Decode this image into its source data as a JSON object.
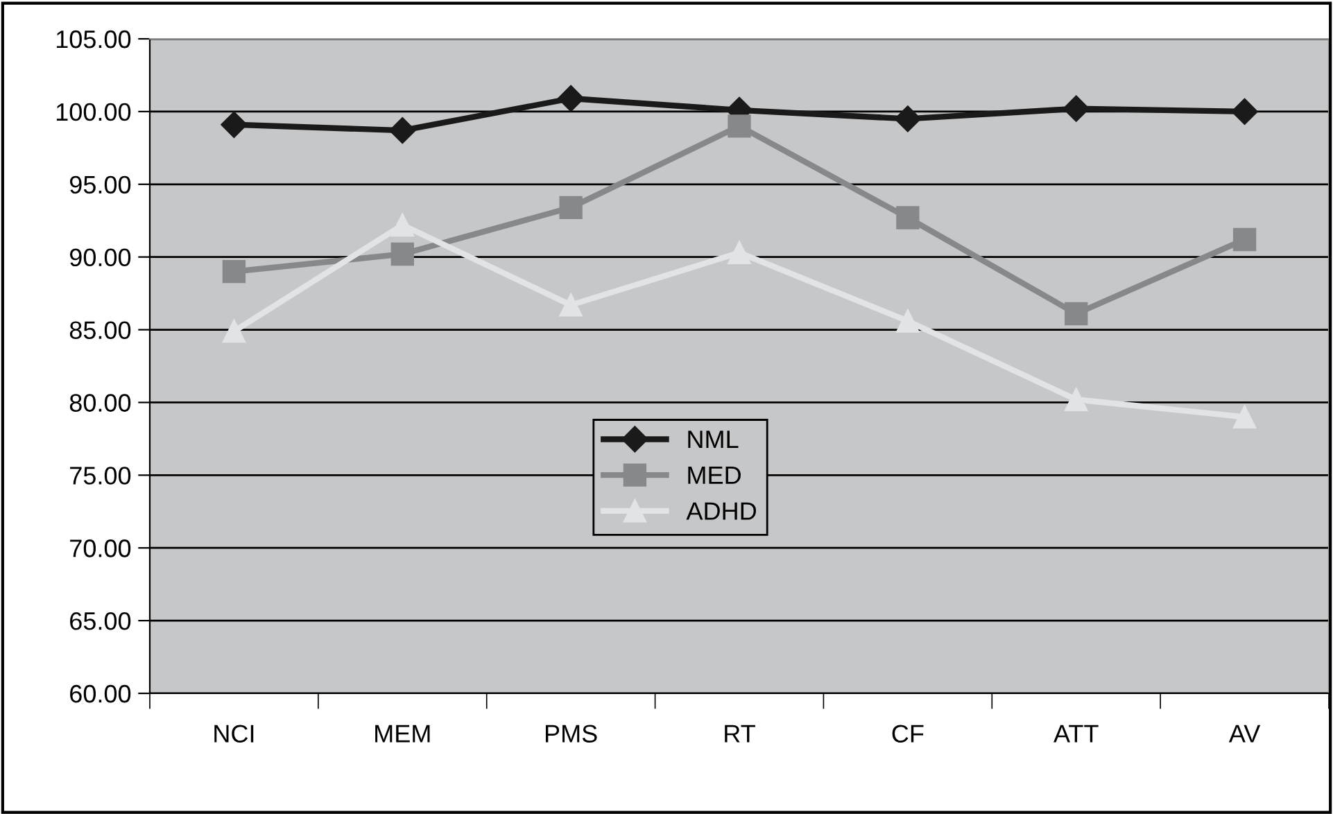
{
  "chart_data": {
    "type": "line",
    "categories": [
      "NCI",
      "MEM",
      "PMS",
      "RT",
      "CF",
      "ATT",
      "AV"
    ],
    "series": [
      {
        "name": "NML",
        "color": "#1a1a1a",
        "marker": "diamond",
        "values": [
          99.1,
          98.7,
          100.9,
          100.1,
          99.5,
          100.2,
          100.0
        ]
      },
      {
        "name": "MED",
        "color": "#87888a",
        "marker": "square",
        "values": [
          89.0,
          90.2,
          93.4,
          99.0,
          92.7,
          86.1,
          91.2
        ]
      },
      {
        "name": "ADHD",
        "color": "#e2e3e5",
        "marker": "triangle",
        "values": [
          84.9,
          92.2,
          86.7,
          90.3,
          85.6,
          80.2,
          79.0
        ]
      }
    ],
    "ylim": [
      60,
      105
    ],
    "yticks": [
      {
        "value": 60,
        "label": "60.00"
      },
      {
        "value": 65,
        "label": "65.00"
      },
      {
        "value": 70,
        "label": "70.00"
      },
      {
        "value": 75,
        "label": "75.00"
      },
      {
        "value": 80,
        "label": "80.00"
      },
      {
        "value": 85,
        "label": "85.00"
      },
      {
        "value": 90,
        "label": "90.00"
      },
      {
        "value": 95,
        "label": "95.00"
      },
      {
        "value": 100,
        "label": "100.00"
      },
      {
        "value": 105,
        "label": "105.00"
      }
    ],
    "grid": "y",
    "legend": "center",
    "line_style": "solid"
  }
}
